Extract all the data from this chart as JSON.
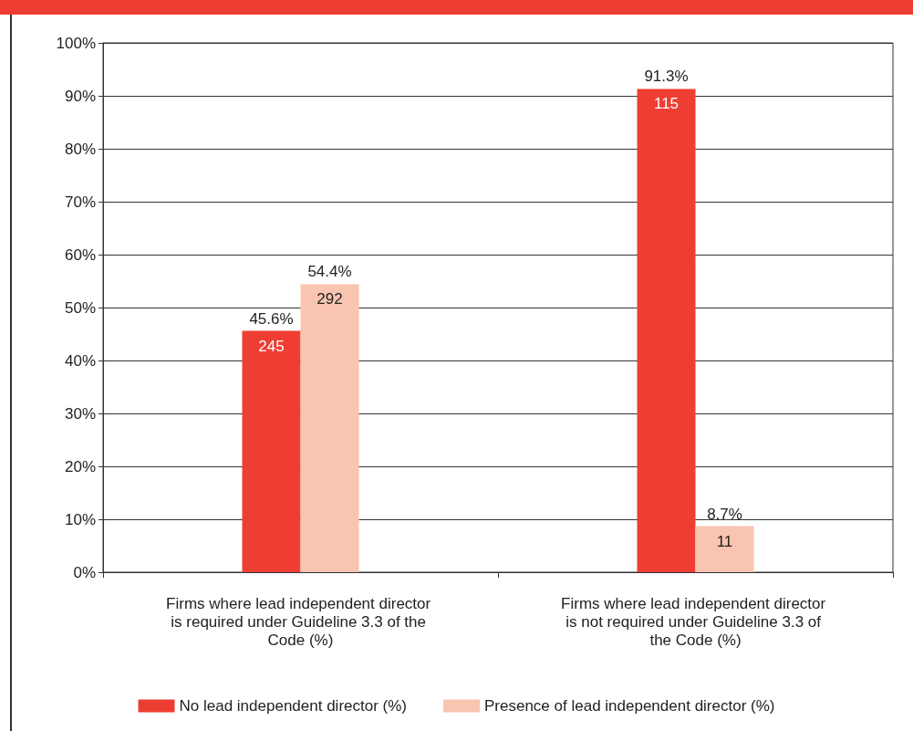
{
  "chart_data": {
    "type": "bar",
    "categories": [
      "Firms where lead independent director is required under Guideline 3.3 of the Code (%)",
      "Firms where lead independent director is not required under Guideline 3.3 of the Code (%)"
    ],
    "series": [
      {
        "name": "No lead independent director (%)",
        "color": "#ee3e33",
        "values": [
          45.6,
          91.3
        ],
        "value_labels": [
          "45.6%",
          "91.3%"
        ]
      },
      {
        "name": "Presence of lead independent director (%)",
        "color": "#f9c4b0",
        "values": [
          54.4,
          8.7
        ],
        "value_labels": [
          "54.4%",
          "8.7%"
        ]
      }
    ],
    "ylim": [
      0,
      100
    ],
    "yticks": [
      {
        "value": 0,
        "label": "0%"
      },
      {
        "value": 10,
        "label": "10%"
      },
      {
        "value": 20,
        "label": "20%"
      },
      {
        "value": 30,
        "label": "30%"
      },
      {
        "value": 40,
        "label": "40%"
      },
      {
        "value": 50,
        "label": "50%"
      },
      {
        "value": 60,
        "label": "60%"
      },
      {
        "value": 70,
        "label": "70%"
      },
      {
        "value": 80,
        "label": "80%"
      },
      {
        "value": 90,
        "label": "90%"
      },
      {
        "value": 100,
        "label": "100%"
      }
    ],
    "annotations": [
      {
        "text": "245",
        "x": "Firms where lead independent director is required under Guideline 3.3 of the Code (%)",
        "y": 45.6
      },
      {
        "text": "292",
        "x": "Firms where lead independent director is required under Guideline 3.3 of the Code (%)",
        "y": 54.4
      },
      {
        "text": "115",
        "x": "Firms where lead independent director is not required under Guideline 3.3 of the Code (%)",
        "y": 91.3
      },
      {
        "text": "11",
        "x": "Firms where lead independent director is not required under Guideline 3.3 of the Code (%)",
        "y": 8.7
      }
    ],
    "grid": "y",
    "legend": "bottom"
  }
}
